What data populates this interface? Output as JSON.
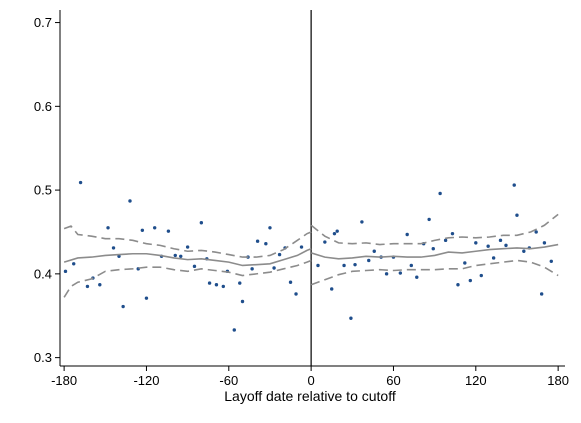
{
  "chart_data": {
    "type": "scatter",
    "title": "",
    "xlabel": "Layoff date relative to cutoff",
    "ylabel": "",
    "xlim": [
      -183,
      185
    ],
    "ylim": [
      0.29,
      0.715
    ],
    "xticks": [
      -180,
      -120,
      -60,
      0,
      60,
      120,
      180
    ],
    "yticks": [
      0.3,
      0.4,
      0.5,
      0.6,
      0.7
    ],
    "xtick_labels": [
      "-180",
      "-120",
      "-60",
      "0",
      "60",
      "120",
      "180"
    ],
    "ytick_labels": [
      "0.3",
      "0.4",
      "0.5",
      "0.6",
      "0.7"
    ],
    "cutoff_x": 0,
    "grid": false,
    "colors": {
      "points": "#1f4e8c",
      "fit": "#8c8c8c",
      "ci": "#8c8c8c",
      "axis": "#000000"
    },
    "series": [
      {
        "kind": "points",
        "x": [
          -179,
          -173,
          -168,
          -163,
          -159,
          -154,
          -148,
          -144,
          -140,
          -137,
          -132,
          -126,
          -123,
          -120,
          -114,
          -109,
          -104,
          -99,
          -95,
          -90,
          -85,
          -80,
          -76,
          -74,
          -69,
          -64,
          -61,
          -56,
          -52,
          -50,
          -46,
          -43,
          -39,
          -33,
          -30,
          -27,
          -23,
          -19,
          -15,
          -11,
          -7,
          5,
          10,
          15,
          17,
          19,
          24,
          29,
          32,
          37,
          42,
          46,
          51,
          55,
          60,
          65,
          70,
          73,
          77,
          82,
          86,
          89,
          94,
          98,
          103,
          107,
          112,
          116,
          120,
          124,
          129,
          133,
          138,
          142,
          148,
          150,
          155,
          159,
          164,
          168,
          170,
          175
        ],
        "y": [
          0.403,
          0.412,
          0.509,
          0.385,
          0.395,
          0.387,
          0.455,
          0.431,
          0.421,
          0.361,
          0.487,
          0.406,
          0.452,
          0.371,
          0.455,
          0.421,
          0.451,
          0.422,
          0.421,
          0.432,
          0.409,
          0.461,
          0.418,
          0.389,
          0.387,
          0.385,
          0.403,
          0.333,
          0.389,
          0.367,
          0.42,
          0.406,
          0.439,
          0.436,
          0.455,
          0.407,
          0.423,
          0.431,
          0.39,
          0.376,
          0.432,
          0.41,
          0.438,
          0.382,
          0.448,
          0.451,
          0.41,
          0.347,
          0.411,
          0.462,
          0.416,
          0.427,
          0.42,
          0.4,
          0.42,
          0.401,
          0.447,
          0.41,
          0.396,
          0.436,
          0.465,
          0.43,
          0.496,
          0.44,
          0.448,
          0.387,
          0.413,
          0.392,
          0.437,
          0.398,
          0.433,
          0.419,
          0.44,
          0.434,
          0.506,
          0.47,
          0.427,
          0.431,
          0.45,
          0.376,
          0.437,
          0.415
        ]
      },
      {
        "kind": "fit",
        "segments": [
          {
            "x": [
              -180,
              -170,
              -160,
              -150,
              -140,
              -130,
              -120,
              -110,
              -100,
              -90,
              -80,
              -70,
              -60,
              -50,
              -40,
              -30,
              -20,
              -10,
              -3,
              0
            ],
            "y": [
              0.414,
              0.419,
              0.42,
              0.422,
              0.423,
              0.424,
              0.424,
              0.422,
              0.419,
              0.417,
              0.418,
              0.416,
              0.414,
              0.41,
              0.411,
              0.412,
              0.417,
              0.422,
              0.428,
              0.43
            ]
          },
          {
            "x": [
              0,
              10,
              20,
              30,
              40,
              50,
              60,
              70,
              80,
              90,
              100,
              110,
              120,
              130,
              140,
              150,
              160,
              170,
              180
            ],
            "y": [
              0.425,
              0.42,
              0.418,
              0.419,
              0.421,
              0.42,
              0.421,
              0.42,
              0.42,
              0.422,
              0.426,
              0.425,
              0.427,
              0.429,
              0.43,
              0.431,
              0.43,
              0.432,
              0.435
            ]
          }
        ]
      },
      {
        "kind": "ci_upper",
        "segments": [
          {
            "x": [
              -180,
              -175,
              -170,
              -160,
              -150,
              -140,
              -130,
              -120,
              -110,
              -100,
              -90,
              -80,
              -70,
              -60,
              -50,
              -40,
              -30,
              -20,
              -10,
              -3,
              0
            ],
            "y": [
              0.454,
              0.457,
              0.447,
              0.445,
              0.442,
              0.442,
              0.44,
              0.436,
              0.434,
              0.43,
              0.427,
              0.428,
              0.426,
              0.423,
              0.42,
              0.42,
              0.422,
              0.429,
              0.44,
              0.448,
              0.45
            ]
          },
          {
            "x": [
              0,
              10,
              20,
              30,
              40,
              50,
              60,
              70,
              80,
              90,
              100,
              110,
              120,
              130,
              140,
              150,
              160,
              170,
              180
            ],
            "y": [
              0.458,
              0.445,
              0.437,
              0.436,
              0.437,
              0.435,
              0.436,
              0.436,
              0.436,
              0.44,
              0.443,
              0.444,
              0.443,
              0.444,
              0.446,
              0.446,
              0.45,
              0.458,
              0.471
            ]
          }
        ]
      },
      {
        "kind": "ci_lower",
        "segments": [
          {
            "x": [
              -180,
              -175,
              -170,
              -160,
              -150,
              -140,
              -130,
              -120,
              -110,
              -100,
              -90,
              -80,
              -70,
              -60,
              -50,
              -40,
              -30,
              -20,
              -10,
              -3,
              0
            ],
            "y": [
              0.372,
              0.385,
              0.39,
              0.394,
              0.403,
              0.405,
              0.406,
              0.408,
              0.408,
              0.405,
              0.403,
              0.406,
              0.404,
              0.402,
              0.398,
              0.4,
              0.402,
              0.406,
              0.41,
              0.414,
              0.416
            ]
          },
          {
            "x": [
              0,
              10,
              20,
              30,
              40,
              50,
              60,
              70,
              80,
              90,
              100,
              110,
              120,
              130,
              140,
              150,
              160,
              170,
              180
            ],
            "y": [
              0.387,
              0.393,
              0.399,
              0.403,
              0.404,
              0.405,
              0.404,
              0.405,
              0.405,
              0.405,
              0.406,
              0.406,
              0.41,
              0.412,
              0.414,
              0.416,
              0.414,
              0.408,
              0.398
            ]
          }
        ]
      }
    ]
  }
}
